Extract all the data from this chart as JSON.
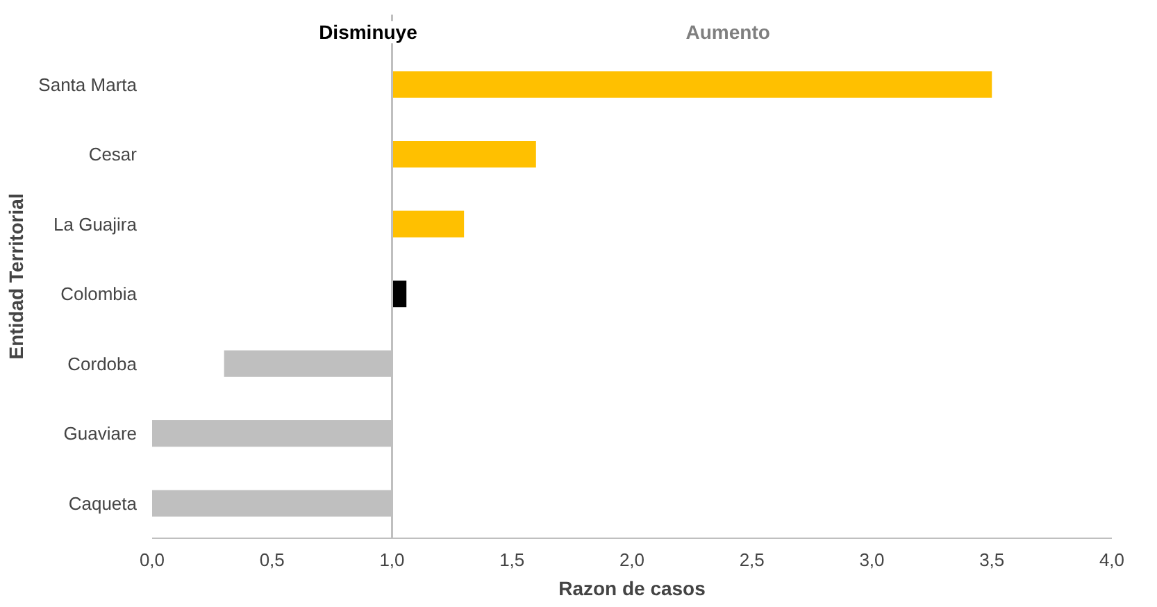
{
  "chart_data": {
    "type": "bar",
    "orientation": "horizontal",
    "xlabel": "Razon de casos",
    "ylabel": "Entidad Territorial",
    "annotations": [
      "Disminuye",
      "Aumento"
    ],
    "categories": [
      "Santa Marta",
      "Cesar",
      "La Guajira",
      "Colombia",
      "Cordoba",
      "Guaviare",
      "Caqueta"
    ],
    "base": [
      1,
      1,
      1,
      1,
      1,
      1,
      1
    ],
    "values": [
      2.5,
      0.6,
      0.3,
      0.06,
      -0.7,
      -1,
      -1
    ],
    "colors": [
      "#ffc000",
      "#ffc000",
      "#ffc000",
      "#000000",
      "#bfbfbf",
      "#bfbfbf",
      "#bfbfbf"
    ],
    "xlim": [
      0,
      4
    ],
    "xticks": [
      {
        "value": 0,
        "label": "0,0"
      },
      {
        "value": 0.5,
        "label": "0,5"
      },
      {
        "value": 1,
        "label": "1,0"
      },
      {
        "value": 1.5,
        "label": "1,5"
      },
      {
        "value": 2,
        "label": "2,0"
      },
      {
        "value": 2.5,
        "label": "2,5"
      },
      {
        "value": 3,
        "label": "3,0"
      },
      {
        "value": 3.5,
        "label": "3,5"
      },
      {
        "value": 4,
        "label": "4,0"
      }
    ],
    "ref_lines": [
      {
        "axis": "x",
        "value": 1,
        "color": "#bfbfbf"
      }
    ],
    "grid": false
  }
}
